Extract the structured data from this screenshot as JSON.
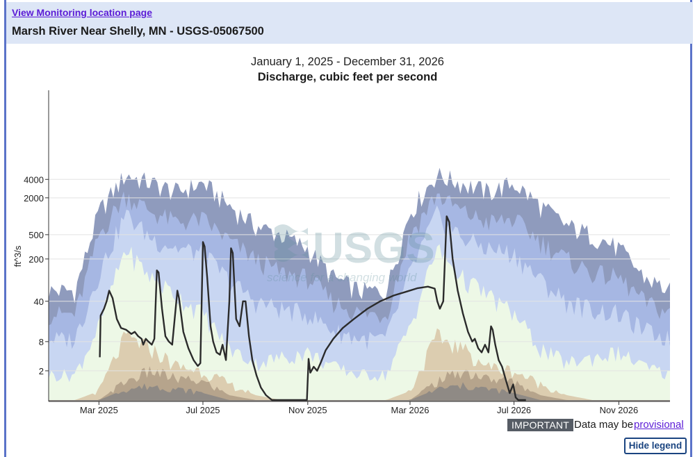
{
  "header": {
    "link_label": "View Monitoring location page",
    "site_title": "Marsh River Near Shelly, MN - USGS-05067500"
  },
  "watermark": {
    "logo_text": "USGS",
    "tagline": "science for a changing world"
  },
  "footer": {
    "important_badge": "IMPORTANT",
    "provisional_text": "Data may be",
    "provisional_link": "provisional",
    "hide_legend_button": "Hide legend"
  },
  "colors": {
    "band_max": "#8f9bbd",
    "band_p90": "#a6b7e3",
    "band_p75": "#c8d6f2",
    "band_p50": "#edf8e6",
    "band_p25": "#dccdb0",
    "band_p10": "#b6a48c",
    "band_min": "#8f8a85",
    "series": "#2b2b2b",
    "grid": "#e3e3e3"
  },
  "chart_data": {
    "type": "area",
    "title": "January 1, 2025 - December 31, 2026",
    "subtitle": "Discharge, cubic feet per second",
    "ylabel": "ft^3/s",
    "xlabel": "",
    "y_scale": "symlog",
    "ylim": [
      0,
      7000
    ],
    "y_ticks": [
      2,
      8,
      40,
      200,
      500,
      2000,
      4000
    ],
    "x_tick_labels": [
      "Mar 2025",
      "Jul 2025",
      "Nov 2025",
      "Mar 2026",
      "Jul 2026",
      "Nov 2026"
    ],
    "x_tick_dates": [
      "2025-03-01",
      "2025-07-01",
      "2025-11-01",
      "2026-03-01",
      "2026-07-01",
      "2026-11-01"
    ],
    "x_range": [
      "2025-01-01",
      "2026-12-31"
    ],
    "grid": true,
    "percentile_bands": [
      {
        "date": "2025-01-01",
        "max": 60,
        "p90": 25,
        "p75": 9,
        "p50": 1.6,
        "p25": 0,
        "p10": 0,
        "min": 0
      },
      {
        "date": "2025-02-01",
        "max": 60,
        "p90": 24,
        "p75": 9,
        "p50": 1.6,
        "p25": 0,
        "p10": 0,
        "min": 0
      },
      {
        "date": "2025-03-01",
        "max": 1200,
        "p90": 500,
        "p75": 120,
        "p50": 15,
        "p25": 0.4,
        "p10": 0,
        "min": 0
      },
      {
        "date": "2025-04-01",
        "max": 4800,
        "p90": 2300,
        "p75": 1100,
        "p50": 300,
        "p25": 10,
        "p10": 1,
        "min": 0.5
      },
      {
        "date": "2025-05-01",
        "max": 3500,
        "p90": 1200,
        "p75": 450,
        "p50": 100,
        "p25": 6,
        "p10": 2,
        "min": 0.7
      },
      {
        "date": "2025-06-01",
        "max": 2500,
        "p90": 800,
        "p75": 300,
        "p50": 50,
        "p25": 2.5,
        "p10": 1.2,
        "min": 0.5
      },
      {
        "date": "2025-07-01",
        "max": 3500,
        "p90": 900,
        "p75": 250,
        "p50": 25,
        "p25": 2,
        "p10": 1,
        "min": 0.3
      },
      {
        "date": "2025-08-01",
        "max": 1500,
        "p90": 400,
        "p75": 90,
        "p50": 6,
        "p25": 0.8,
        "p10": 0.2,
        "min": 0
      },
      {
        "date": "2025-09-01",
        "max": 700,
        "p90": 200,
        "p75": 40,
        "p50": 3,
        "p25": 0.2,
        "p10": 0,
        "min": 0
      },
      {
        "date": "2025-10-01",
        "max": 500,
        "p90": 120,
        "p75": 30,
        "p50": 4,
        "p25": 0,
        "p10": 0,
        "min": 0
      },
      {
        "date": "2025-11-01",
        "max": 300,
        "p90": 100,
        "p75": 25,
        "p50": 5,
        "p25": 0,
        "p10": 0,
        "min": 0
      },
      {
        "date": "2025-12-01",
        "max": 100,
        "p90": 40,
        "p75": 13,
        "p50": 2.5,
        "p25": 0,
        "p10": 0,
        "min": 0
      },
      {
        "date": "2026-01-01",
        "max": 60,
        "p90": 25,
        "p75": 9,
        "p50": 1.6,
        "p25": 0,
        "p10": 0,
        "min": 0
      },
      {
        "date": "2026-02-01",
        "max": 60,
        "p90": 24,
        "p75": 9,
        "p50": 1.6,
        "p25": 0,
        "p10": 0,
        "min": 0
      },
      {
        "date": "2026-03-01",
        "max": 1200,
        "p90": 500,
        "p75": 120,
        "p50": 15,
        "p25": 0.4,
        "p10": 0,
        "min": 0
      },
      {
        "date": "2026-04-01",
        "max": 4800,
        "p90": 2300,
        "p75": 1100,
        "p50": 300,
        "p25": 10,
        "p10": 1,
        "min": 0.5
      },
      {
        "date": "2026-05-01",
        "max": 3500,
        "p90": 1200,
        "p75": 450,
        "p50": 100,
        "p25": 6,
        "p10": 2,
        "min": 0.7
      },
      {
        "date": "2026-06-01",
        "max": 2500,
        "p90": 800,
        "p75": 300,
        "p50": 50,
        "p25": 2.5,
        "p10": 1.2,
        "min": 0.5
      },
      {
        "date": "2026-07-01",
        "max": 3500,
        "p90": 900,
        "p75": 250,
        "p50": 25,
        "p25": 2,
        "p10": 1,
        "min": 0.3
      },
      {
        "date": "2026-08-01",
        "max": 1500,
        "p90": 400,
        "p75": 90,
        "p50": 6,
        "p25": 0.8,
        "p10": 0.2,
        "min": 0
      },
      {
        "date": "2026-09-01",
        "max": 700,
        "p90": 200,
        "p75": 40,
        "p50": 3,
        "p25": 0.2,
        "p10": 0,
        "min": 0
      },
      {
        "date": "2026-10-01",
        "max": 500,
        "p90": 120,
        "p75": 30,
        "p50": 4,
        "p25": 0,
        "p10": 0,
        "min": 0
      },
      {
        "date": "2026-11-01",
        "max": 300,
        "p90": 100,
        "p75": 25,
        "p50": 5,
        "p25": 0,
        "p10": 0,
        "min": 0
      },
      {
        "date": "2026-12-01",
        "max": 100,
        "p90": 40,
        "p75": 13,
        "p50": 2.5,
        "p25": 0,
        "p10": 0,
        "min": 0
      },
      {
        "date": "2026-12-31",
        "max": 60,
        "p90": 25,
        "p75": 9,
        "p50": 1.6,
        "p25": 0,
        "p10": 0,
        "min": 0
      }
    ],
    "series": [
      {
        "points": [
          [
            "2025-03-02",
            4
          ],
          [
            "2025-03-03",
            23
          ],
          [
            "2025-03-07",
            30
          ],
          [
            "2025-03-10",
            40
          ],
          [
            "2025-03-13",
            60
          ],
          [
            "2025-03-17",
            45
          ],
          [
            "2025-03-22",
            20
          ],
          [
            "2025-03-27",
            14
          ],
          [
            "2025-04-02",
            13
          ],
          [
            "2025-04-08",
            11
          ],
          [
            "2025-04-12",
            12
          ],
          [
            "2025-04-16",
            10
          ],
          [
            "2025-04-20",
            9
          ],
          [
            "2025-04-22",
            7
          ],
          [
            "2025-04-25",
            9
          ],
          [
            "2025-04-28",
            8
          ],
          [
            "2025-05-02",
            7
          ],
          [
            "2025-05-05",
            9
          ],
          [
            "2025-05-08",
            130
          ],
          [
            "2025-05-10",
            120
          ],
          [
            "2025-05-14",
            30
          ],
          [
            "2025-05-18",
            10
          ],
          [
            "2025-05-22",
            8
          ],
          [
            "2025-05-26",
            7
          ],
          [
            "2025-06-01",
            60
          ],
          [
            "2025-06-03",
            45
          ],
          [
            "2025-06-08",
            12
          ],
          [
            "2025-06-14",
            6
          ],
          [
            "2025-06-20",
            3.5
          ],
          [
            "2025-06-25",
            2.6
          ],
          [
            "2025-06-28",
            3
          ],
          [
            "2025-07-01",
            380
          ],
          [
            "2025-07-03",
            320
          ],
          [
            "2025-07-06",
            100
          ],
          [
            "2025-07-10",
            15
          ],
          [
            "2025-07-13",
            8
          ],
          [
            "2025-07-17",
            5
          ],
          [
            "2025-07-21",
            4.5
          ],
          [
            "2025-07-24",
            7
          ],
          [
            "2025-07-28",
            3.5
          ],
          [
            "2025-08-01",
            40
          ],
          [
            "2025-08-03",
            300
          ],
          [
            "2025-08-05",
            250
          ],
          [
            "2025-08-09",
            20
          ],
          [
            "2025-08-13",
            15
          ],
          [
            "2025-08-17",
            40
          ],
          [
            "2025-08-20",
            40
          ],
          [
            "2025-08-24",
            10
          ],
          [
            "2025-08-28",
            3.5
          ],
          [
            "2025-09-02",
            1.5
          ],
          [
            "2025-09-07",
            0.6
          ],
          [
            "2025-09-13",
            0.2
          ],
          [
            "2025-09-20",
            0
          ],
          [
            "2025-10-31",
            0
          ],
          [
            "2025-11-02",
            3.7
          ],
          [
            "2025-11-04",
            1.8
          ],
          [
            "2025-11-08",
            2.5
          ],
          [
            "2025-11-12",
            2
          ],
          [
            "2025-11-16",
            3
          ],
          [
            "2025-11-22",
            5.5
          ],
          [
            "2025-12-01",
            9
          ],
          [
            "2025-12-12",
            14
          ],
          [
            "2025-12-25",
            20
          ],
          [
            "2026-01-10",
            30
          ],
          [
            "2026-01-25",
            40
          ],
          [
            "2026-02-10",
            50
          ],
          [
            "2026-02-25",
            58
          ],
          [
            "2026-03-10",
            66
          ],
          [
            "2026-03-22",
            70
          ],
          [
            "2026-03-30",
            65
          ],
          [
            "2026-04-02",
            40
          ],
          [
            "2026-04-05",
            30
          ],
          [
            "2026-04-09",
            40
          ],
          [
            "2026-04-13",
            1000
          ],
          [
            "2026-04-16",
            800
          ],
          [
            "2026-04-20",
            200
          ],
          [
            "2026-04-26",
            60
          ],
          [
            "2026-05-02",
            25
          ],
          [
            "2026-05-08",
            12
          ],
          [
            "2026-05-13",
            8
          ],
          [
            "2026-05-16",
            9
          ],
          [
            "2026-05-20",
            6
          ],
          [
            "2026-05-24",
            5
          ],
          [
            "2026-05-28",
            7
          ],
          [
            "2026-06-01",
            5
          ],
          [
            "2026-06-04",
            15
          ],
          [
            "2026-06-06",
            13
          ],
          [
            "2026-06-09",
            7
          ],
          [
            "2026-06-13",
            3.5
          ],
          [
            "2026-06-17",
            2.5
          ],
          [
            "2026-06-22",
            1
          ],
          [
            "2026-06-26",
            0.3
          ],
          [
            "2026-06-30",
            0.8
          ],
          [
            "2026-07-03",
            0.1
          ],
          [
            "2026-07-06",
            0
          ],
          [
            "2026-07-15",
            0
          ]
        ]
      }
    ]
  }
}
